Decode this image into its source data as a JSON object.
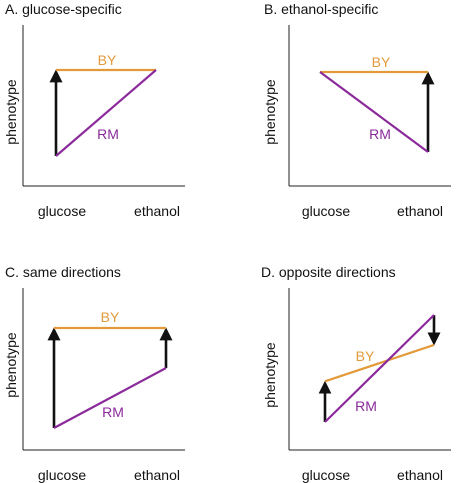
{
  "colors": {
    "BY": "#e29a3a",
    "RM": "#8b2a9a",
    "axis": "#222222",
    "arrow": "#111111"
  },
  "chart_data": [
    {
      "type": "line",
      "title": "A. glucose-specific",
      "ylabel": "phenotype",
      "categories": [
        "glucose",
        "ethanol"
      ],
      "series": [
        {
          "name": "BY",
          "values": [
            1.0,
            1.0
          ]
        },
        {
          "name": "RM",
          "values": [
            0.0,
            1.0
          ]
        }
      ],
      "arrows": [
        {
          "at": "glucose",
          "from": 0.0,
          "to": 1.0
        }
      ]
    },
    {
      "type": "line",
      "title": "B. ethanol-specific",
      "ylabel": "phenotype",
      "categories": [
        "glucose",
        "ethanol"
      ],
      "series": [
        {
          "name": "BY",
          "values": [
            1.0,
            1.0
          ]
        },
        {
          "name": "RM",
          "values": [
            1.0,
            0.0
          ]
        }
      ],
      "arrows": [
        {
          "at": "ethanol",
          "from": 0.0,
          "to": 1.0
        }
      ]
    },
    {
      "type": "line",
      "title": "C. same directions",
      "ylabel": "phenotype",
      "categories": [
        "glucose",
        "ethanol"
      ],
      "series": [
        {
          "name": "BY",
          "values": [
            1.0,
            1.0
          ]
        },
        {
          "name": "RM",
          "values": [
            0.0,
            0.6
          ]
        }
      ],
      "arrows": [
        {
          "at": "glucose",
          "from": 0.0,
          "to": 1.0
        },
        {
          "at": "ethanol",
          "from": 0.6,
          "to": 1.0
        }
      ]
    },
    {
      "type": "line",
      "title": "D. opposite directions",
      "ylabel": "phenotype",
      "categories": [
        "glucose",
        "ethanol"
      ],
      "series": [
        {
          "name": "BY",
          "values": [
            0.38,
            0.72
          ]
        },
        {
          "name": "RM",
          "values": [
            0.0,
            1.0
          ]
        }
      ],
      "arrows": [
        {
          "at": "glucose",
          "from": 0.0,
          "to": 0.38
        },
        {
          "at": "ethanol",
          "from": 1.0,
          "to": 0.72
        }
      ]
    }
  ]
}
